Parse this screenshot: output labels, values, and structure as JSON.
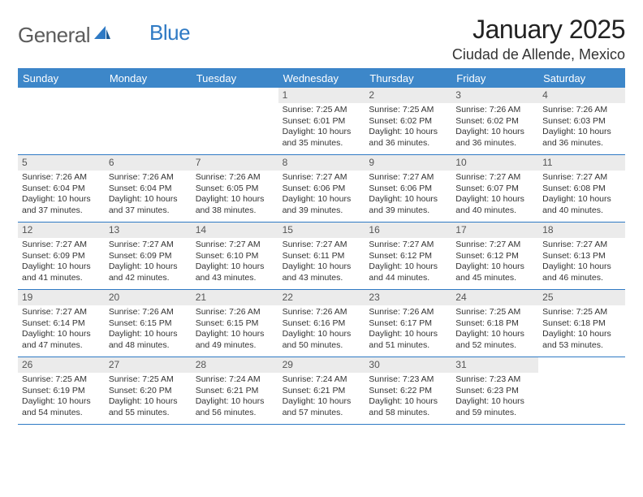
{
  "brand": {
    "name_part1": "General",
    "name_part2": "Blue",
    "text_color_gray": "#5c5c5c",
    "text_color_blue": "#2f7ac4",
    "logo_fontsize": 26
  },
  "header": {
    "month_title": "January 2025",
    "location": "Ciudad de Allende, Mexico",
    "title_fontsize": 32,
    "title_color": "#222222",
    "location_fontsize": 18,
    "location_color": "#333333"
  },
  "calendar": {
    "type": "table",
    "header_bg": "#3d87c9",
    "header_text_color": "#ffffff",
    "header_fontsize": 13,
    "row_border_color": "#2f7ac4",
    "daynum_bg": "#ebebeb",
    "daynum_color": "#555555",
    "body_fontsize": 10.5,
    "body_color": "#333333",
    "background_color": "#ffffff",
    "columns": [
      "Sunday",
      "Monday",
      "Tuesday",
      "Wednesday",
      "Thursday",
      "Friday",
      "Saturday"
    ],
    "weeks": [
      [
        {
          "day": ""
        },
        {
          "day": ""
        },
        {
          "day": ""
        },
        {
          "day": "1",
          "sunrise": "Sunrise: 7:25 AM",
          "sunset": "Sunset: 6:01 PM",
          "day1": "Daylight: 10 hours",
          "day2": "and 35 minutes."
        },
        {
          "day": "2",
          "sunrise": "Sunrise: 7:25 AM",
          "sunset": "Sunset: 6:02 PM",
          "day1": "Daylight: 10 hours",
          "day2": "and 36 minutes."
        },
        {
          "day": "3",
          "sunrise": "Sunrise: 7:26 AM",
          "sunset": "Sunset: 6:02 PM",
          "day1": "Daylight: 10 hours",
          "day2": "and 36 minutes."
        },
        {
          "day": "4",
          "sunrise": "Sunrise: 7:26 AM",
          "sunset": "Sunset: 6:03 PM",
          "day1": "Daylight: 10 hours",
          "day2": "and 36 minutes."
        }
      ],
      [
        {
          "day": "5",
          "sunrise": "Sunrise: 7:26 AM",
          "sunset": "Sunset: 6:04 PM",
          "day1": "Daylight: 10 hours",
          "day2": "and 37 minutes."
        },
        {
          "day": "6",
          "sunrise": "Sunrise: 7:26 AM",
          "sunset": "Sunset: 6:04 PM",
          "day1": "Daylight: 10 hours",
          "day2": "and 37 minutes."
        },
        {
          "day": "7",
          "sunrise": "Sunrise: 7:26 AM",
          "sunset": "Sunset: 6:05 PM",
          "day1": "Daylight: 10 hours",
          "day2": "and 38 minutes."
        },
        {
          "day": "8",
          "sunrise": "Sunrise: 7:27 AM",
          "sunset": "Sunset: 6:06 PM",
          "day1": "Daylight: 10 hours",
          "day2": "and 39 minutes."
        },
        {
          "day": "9",
          "sunrise": "Sunrise: 7:27 AM",
          "sunset": "Sunset: 6:06 PM",
          "day1": "Daylight: 10 hours",
          "day2": "and 39 minutes."
        },
        {
          "day": "10",
          "sunrise": "Sunrise: 7:27 AM",
          "sunset": "Sunset: 6:07 PM",
          "day1": "Daylight: 10 hours",
          "day2": "and 40 minutes."
        },
        {
          "day": "11",
          "sunrise": "Sunrise: 7:27 AM",
          "sunset": "Sunset: 6:08 PM",
          "day1": "Daylight: 10 hours",
          "day2": "and 40 minutes."
        }
      ],
      [
        {
          "day": "12",
          "sunrise": "Sunrise: 7:27 AM",
          "sunset": "Sunset: 6:09 PM",
          "day1": "Daylight: 10 hours",
          "day2": "and 41 minutes."
        },
        {
          "day": "13",
          "sunrise": "Sunrise: 7:27 AM",
          "sunset": "Sunset: 6:09 PM",
          "day1": "Daylight: 10 hours",
          "day2": "and 42 minutes."
        },
        {
          "day": "14",
          "sunrise": "Sunrise: 7:27 AM",
          "sunset": "Sunset: 6:10 PM",
          "day1": "Daylight: 10 hours",
          "day2": "and 43 minutes."
        },
        {
          "day": "15",
          "sunrise": "Sunrise: 7:27 AM",
          "sunset": "Sunset: 6:11 PM",
          "day1": "Daylight: 10 hours",
          "day2": "and 43 minutes."
        },
        {
          "day": "16",
          "sunrise": "Sunrise: 7:27 AM",
          "sunset": "Sunset: 6:12 PM",
          "day1": "Daylight: 10 hours",
          "day2": "and 44 minutes."
        },
        {
          "day": "17",
          "sunrise": "Sunrise: 7:27 AM",
          "sunset": "Sunset: 6:12 PM",
          "day1": "Daylight: 10 hours",
          "day2": "and 45 minutes."
        },
        {
          "day": "18",
          "sunrise": "Sunrise: 7:27 AM",
          "sunset": "Sunset: 6:13 PM",
          "day1": "Daylight: 10 hours",
          "day2": "and 46 minutes."
        }
      ],
      [
        {
          "day": "19",
          "sunrise": "Sunrise: 7:27 AM",
          "sunset": "Sunset: 6:14 PM",
          "day1": "Daylight: 10 hours",
          "day2": "and 47 minutes."
        },
        {
          "day": "20",
          "sunrise": "Sunrise: 7:26 AM",
          "sunset": "Sunset: 6:15 PM",
          "day1": "Daylight: 10 hours",
          "day2": "and 48 minutes."
        },
        {
          "day": "21",
          "sunrise": "Sunrise: 7:26 AM",
          "sunset": "Sunset: 6:15 PM",
          "day1": "Daylight: 10 hours",
          "day2": "and 49 minutes."
        },
        {
          "day": "22",
          "sunrise": "Sunrise: 7:26 AM",
          "sunset": "Sunset: 6:16 PM",
          "day1": "Daylight: 10 hours",
          "day2": "and 50 minutes."
        },
        {
          "day": "23",
          "sunrise": "Sunrise: 7:26 AM",
          "sunset": "Sunset: 6:17 PM",
          "day1": "Daylight: 10 hours",
          "day2": "and 51 minutes."
        },
        {
          "day": "24",
          "sunrise": "Sunrise: 7:25 AM",
          "sunset": "Sunset: 6:18 PM",
          "day1": "Daylight: 10 hours",
          "day2": "and 52 minutes."
        },
        {
          "day": "25",
          "sunrise": "Sunrise: 7:25 AM",
          "sunset": "Sunset: 6:18 PM",
          "day1": "Daylight: 10 hours",
          "day2": "and 53 minutes."
        }
      ],
      [
        {
          "day": "26",
          "sunrise": "Sunrise: 7:25 AM",
          "sunset": "Sunset: 6:19 PM",
          "day1": "Daylight: 10 hours",
          "day2": "and 54 minutes."
        },
        {
          "day": "27",
          "sunrise": "Sunrise: 7:25 AM",
          "sunset": "Sunset: 6:20 PM",
          "day1": "Daylight: 10 hours",
          "day2": "and 55 minutes."
        },
        {
          "day": "28",
          "sunrise": "Sunrise: 7:24 AM",
          "sunset": "Sunset: 6:21 PM",
          "day1": "Daylight: 10 hours",
          "day2": "and 56 minutes."
        },
        {
          "day": "29",
          "sunrise": "Sunrise: 7:24 AM",
          "sunset": "Sunset: 6:21 PM",
          "day1": "Daylight: 10 hours",
          "day2": "and 57 minutes."
        },
        {
          "day": "30",
          "sunrise": "Sunrise: 7:23 AM",
          "sunset": "Sunset: 6:22 PM",
          "day1": "Daylight: 10 hours",
          "day2": "and 58 minutes."
        },
        {
          "day": "31",
          "sunrise": "Sunrise: 7:23 AM",
          "sunset": "Sunset: 6:23 PM",
          "day1": "Daylight: 10 hours",
          "day2": "and 59 minutes."
        },
        {
          "day": ""
        }
      ]
    ]
  }
}
